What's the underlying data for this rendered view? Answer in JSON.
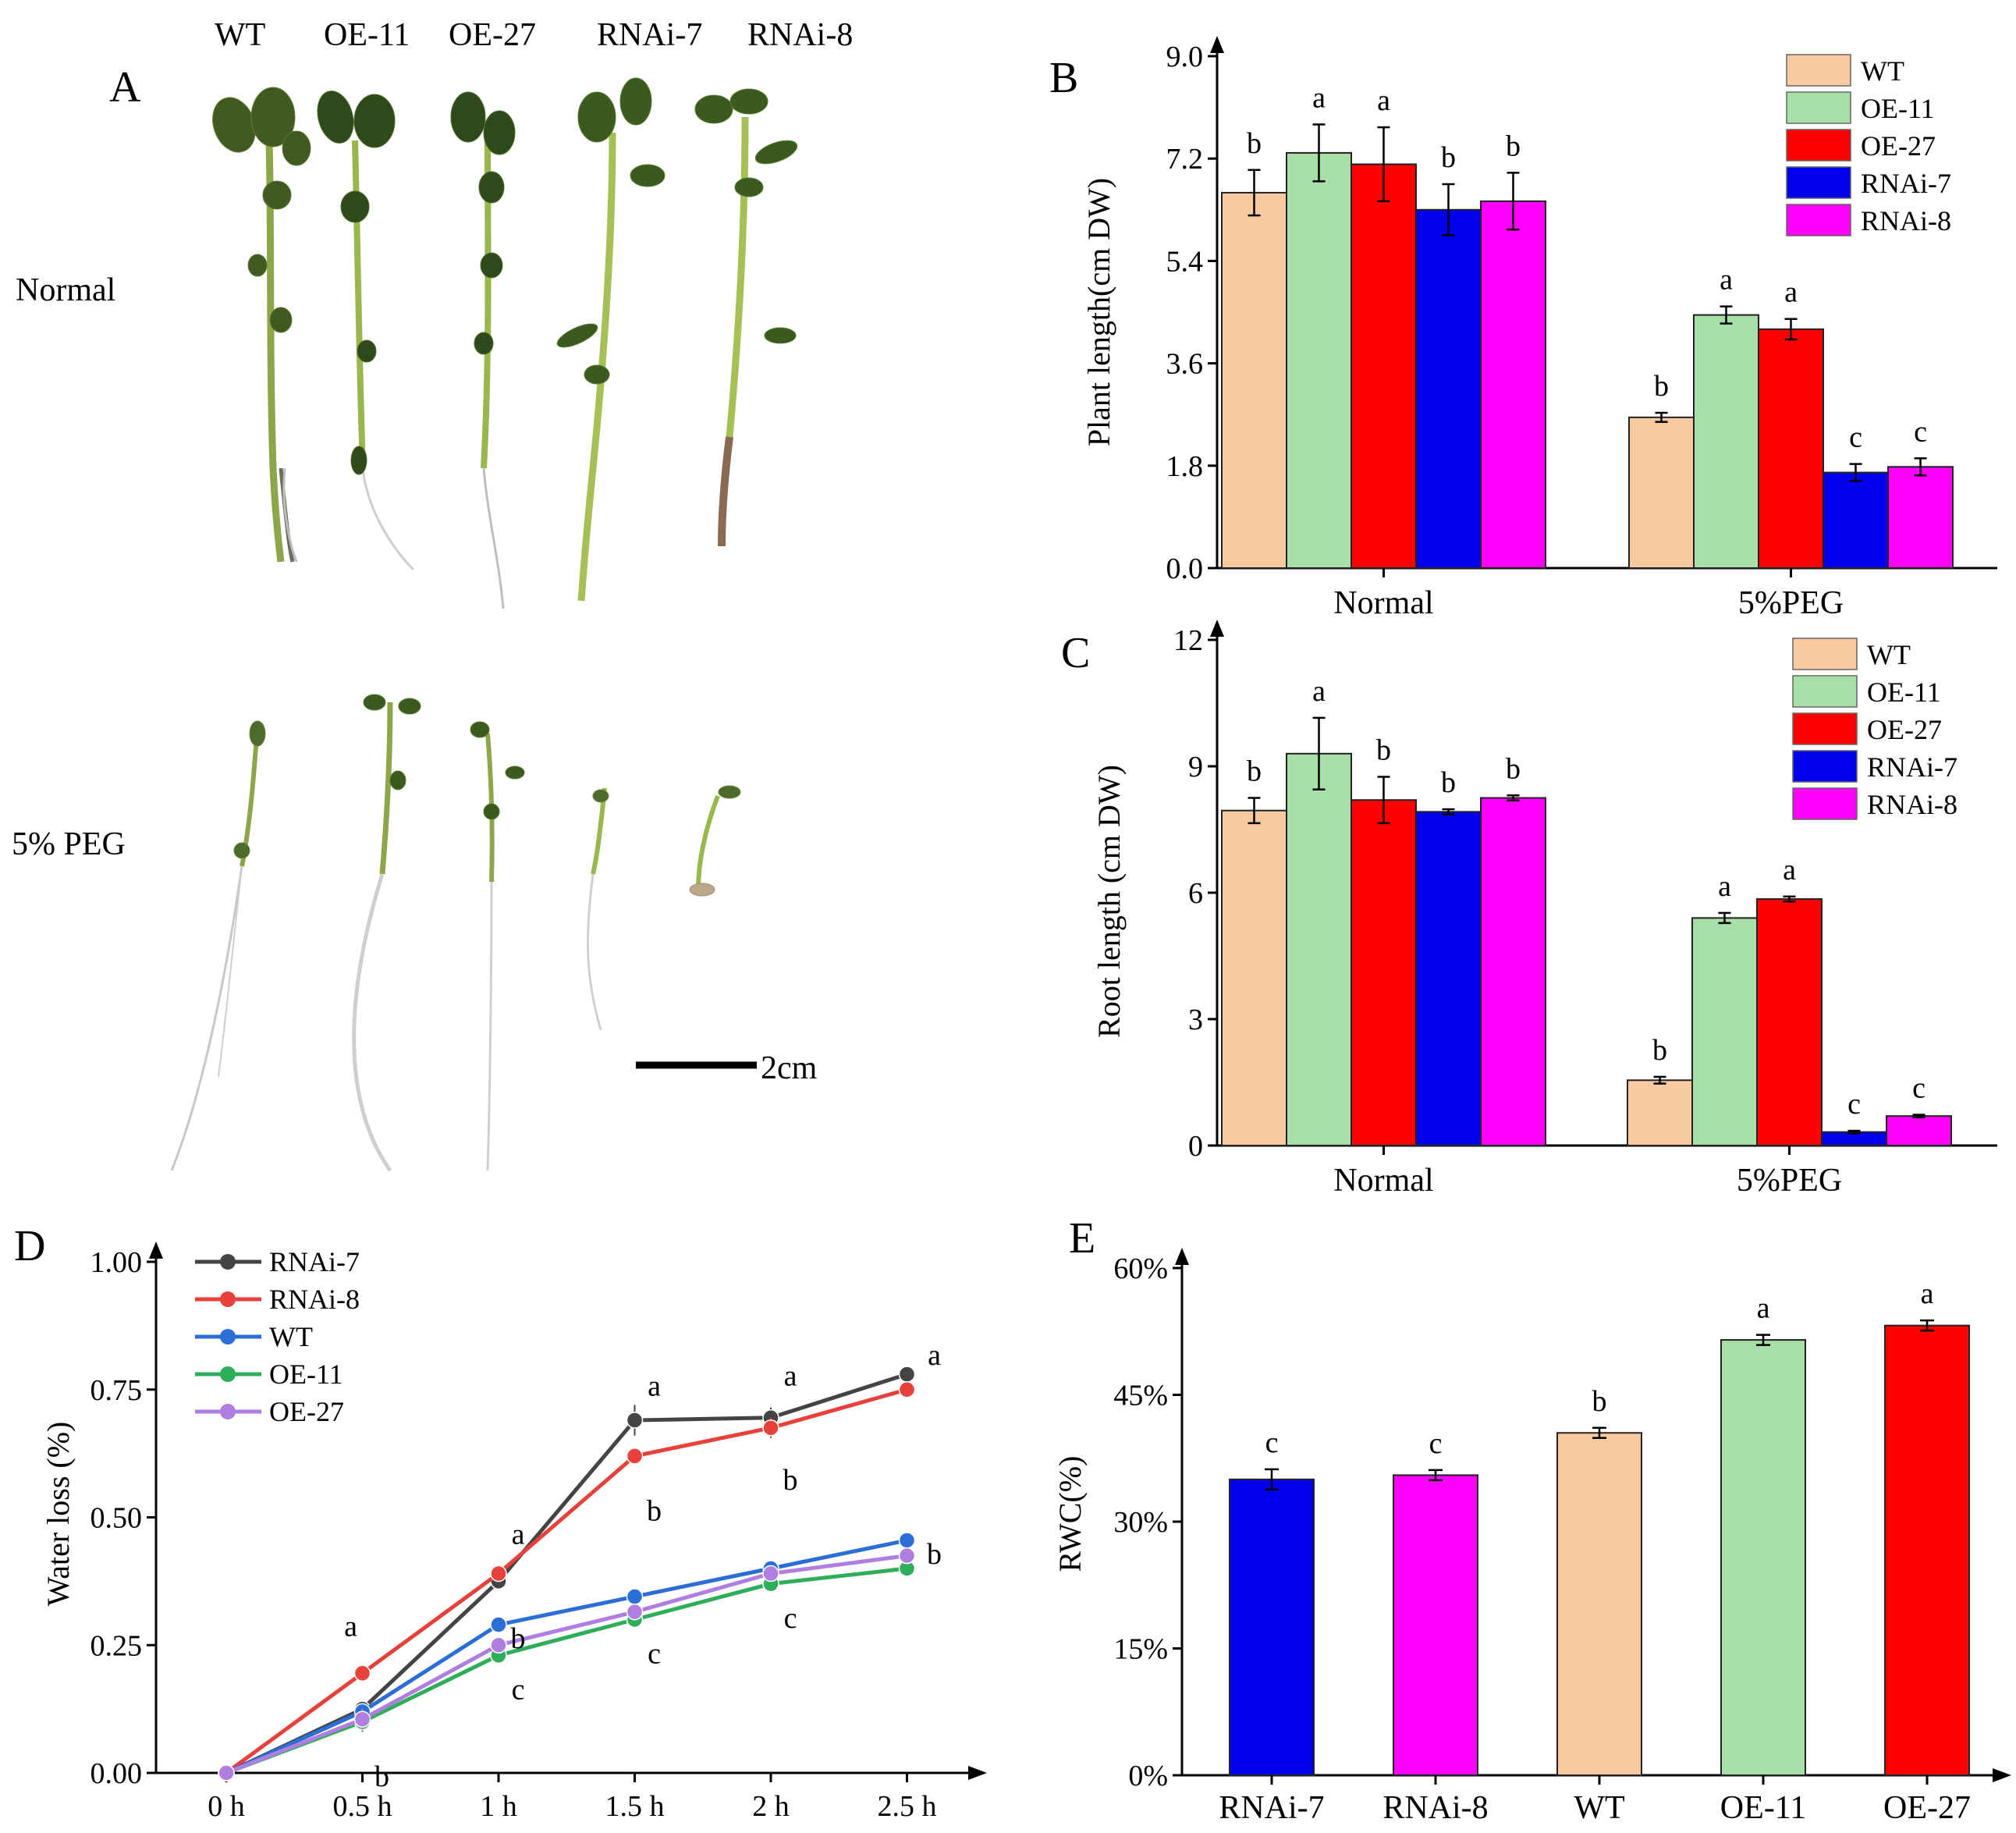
{
  "panel_a": {
    "label": "A",
    "genotypes": [
      "WT",
      "OE-11",
      "OE-27",
      "RNAi-7",
      "RNAi-8"
    ],
    "rows": [
      "Normal",
      "5% PEG"
    ],
    "scale_bar": "2cm"
  },
  "chart_data": [
    {
      "panel": "B",
      "type": "bar",
      "categories": [
        "Normal",
        "5%PEG"
      ],
      "series": [
        {
          "name": "WT",
          "values": [
            6.6,
            2.65
          ],
          "errors": [
            0.4,
            0.08
          ],
          "letters": [
            "b",
            "b"
          ]
        },
        {
          "name": "OE-11",
          "values": [
            7.3,
            4.45
          ],
          "errors": [
            0.5,
            0.15
          ],
          "letters": [
            "a",
            "a"
          ]
        },
        {
          "name": "OE-27",
          "values": [
            7.1,
            4.2
          ],
          "errors": [
            0.65,
            0.18
          ],
          "letters": [
            "a",
            "a"
          ]
        },
        {
          "name": "RNAi-7",
          "values": [
            6.3,
            1.68
          ],
          "errors": [
            0.45,
            0.15
          ],
          "letters": [
            "b",
            "c"
          ]
        },
        {
          "name": "RNAi-8",
          "values": [
            6.45,
            1.78
          ],
          "errors": [
            0.5,
            0.15
          ],
          "letters": [
            "b",
            "c"
          ]
        }
      ],
      "ylabel": "Plant length(cm DW)",
      "ylim": [
        0,
        9.0
      ],
      "yticks": [
        "0.0",
        "1.8",
        "3.6",
        "5.4",
        "7.2",
        "9.0"
      ],
      "legend": "top-right"
    },
    {
      "panel": "C",
      "type": "bar",
      "categories": [
        "Normal",
        "5%PEG"
      ],
      "series": [
        {
          "name": "WT",
          "values": [
            7.95,
            1.55
          ],
          "errors": [
            0.3,
            0.08
          ],
          "letters": [
            "b",
            "b"
          ]
        },
        {
          "name": "OE-11",
          "values": [
            9.3,
            5.4
          ],
          "errors": [
            0.85,
            0.12
          ],
          "letters": [
            "a",
            "a"
          ]
        },
        {
          "name": "OE-27",
          "values": [
            8.2,
            5.85
          ],
          "errors": [
            0.55,
            0.06
          ],
          "letters": [
            "b",
            "a"
          ]
        },
        {
          "name": "RNAi-7",
          "values": [
            7.92,
            0.32
          ],
          "errors": [
            0.06,
            0.03
          ],
          "letters": [
            "b",
            "c"
          ]
        },
        {
          "name": "RNAi-8",
          "values": [
            8.25,
            0.7
          ],
          "errors": [
            0.06,
            0.03
          ],
          "letters": [
            "b",
            "c"
          ]
        }
      ],
      "ylabel": "Root length (cm DW)",
      "ylim": [
        0,
        12
      ],
      "yticks": [
        "0",
        "3",
        "6",
        "9",
        "12"
      ],
      "legend": "top-right"
    },
    {
      "panel": "D",
      "type": "line",
      "x": [
        "0 h",
        "0.5 h",
        "1 h",
        "1.5 h",
        "2 h",
        "2.5 h"
      ],
      "series": [
        {
          "name": "RNAi-7",
          "color": "#444444",
          "values": [
            0.0,
            0.125,
            0.375,
            0.69,
            0.695,
            0.78
          ],
          "errors": [
            0.01,
            0.012,
            0.012,
            0.03,
            0.02,
            0.01
          ]
        },
        {
          "name": "RNAi-8",
          "color": "#e8403a",
          "values": [
            0.0,
            0.195,
            0.39,
            0.62,
            0.675,
            0.75
          ],
          "errors": [
            0.01,
            0.01,
            0.01,
            0.01,
            0.02,
            0.01
          ]
        },
        {
          "name": "WT",
          "color": "#2b6fd6",
          "values": [
            0.0,
            0.12,
            0.29,
            0.345,
            0.4,
            0.455
          ],
          "errors": [
            0.01,
            0.01,
            0.01,
            0.01,
            0.01,
            0.01
          ]
        },
        {
          "name": "OE-11",
          "color": "#2fae5a",
          "values": [
            0.0,
            0.1,
            0.23,
            0.3,
            0.37,
            0.4
          ],
          "errors": [
            0.01,
            0.02,
            0.01,
            0.01,
            0.01,
            0.01
          ]
        },
        {
          "name": "OE-27",
          "color": "#b07ee0",
          "values": [
            0.0,
            0.105,
            0.25,
            0.315,
            0.39,
            0.425
          ],
          "errors": [
            0.01,
            0.02,
            0.01,
            0.01,
            0.01,
            0.01
          ]
        }
      ],
      "annotations": [
        {
          "text": "a",
          "xi": 1,
          "y": 0.25
        },
        {
          "text": "b",
          "xi": 1,
          "y": 0.02
        },
        {
          "text": "a",
          "xi": 2,
          "y": 0.43
        },
        {
          "text": "b",
          "xi": 2,
          "y": 0.29
        },
        {
          "text": "c",
          "xi": 2,
          "y": 0.19
        },
        {
          "text": "a",
          "xi": 3,
          "y": 0.72
        },
        {
          "text": "b",
          "xi": 3,
          "y": 0.54
        },
        {
          "text": "c",
          "xi": 3,
          "y": 0.26
        },
        {
          "text": "a",
          "xi": 4,
          "y": 0.74
        },
        {
          "text": "b",
          "xi": 4,
          "y": 0.6
        },
        {
          "text": "c",
          "xi": 4,
          "y": 0.33
        },
        {
          "text": "a",
          "xi": 5,
          "y": 0.78
        },
        {
          "text": "b",
          "xi": 5,
          "y": 0.455
        }
      ],
      "ylabel": "Water loss (%)",
      "ylim": [
        0,
        1.0
      ],
      "yticks": [
        "0.00",
        "0.25",
        "0.50",
        "0.75",
        "1.00"
      ],
      "legend": "top-left"
    },
    {
      "panel": "E",
      "type": "bar",
      "categories": [
        "RNAi-7",
        "RNAi-8",
        "WT",
        "OE-11",
        "OE-27"
      ],
      "values": [
        0.35,
        0.355,
        0.405,
        0.515,
        0.532
      ],
      "errors": [
        0.012,
        0.006,
        0.006,
        0.006,
        0.006
      ],
      "letters": [
        "c",
        "c",
        "b",
        "a",
        "a"
      ],
      "colors": [
        "#0000ee",
        "#ff00ff",
        "#f9c99f",
        "#a8dea8",
        "#ff0000"
      ],
      "ylabel": "RWC(%)",
      "ylim": [
        0,
        0.6
      ],
      "yticks": [
        "0%",
        "15%",
        "30%",
        "45%",
        "60%"
      ]
    }
  ],
  "colors": {
    "WT": "#f9c99f",
    "OE-11": "#a8dea8",
    "OE-27": "#ff0000",
    "RNAi-7": "#0000ee",
    "RNAi-8": "#ff00ff"
  }
}
